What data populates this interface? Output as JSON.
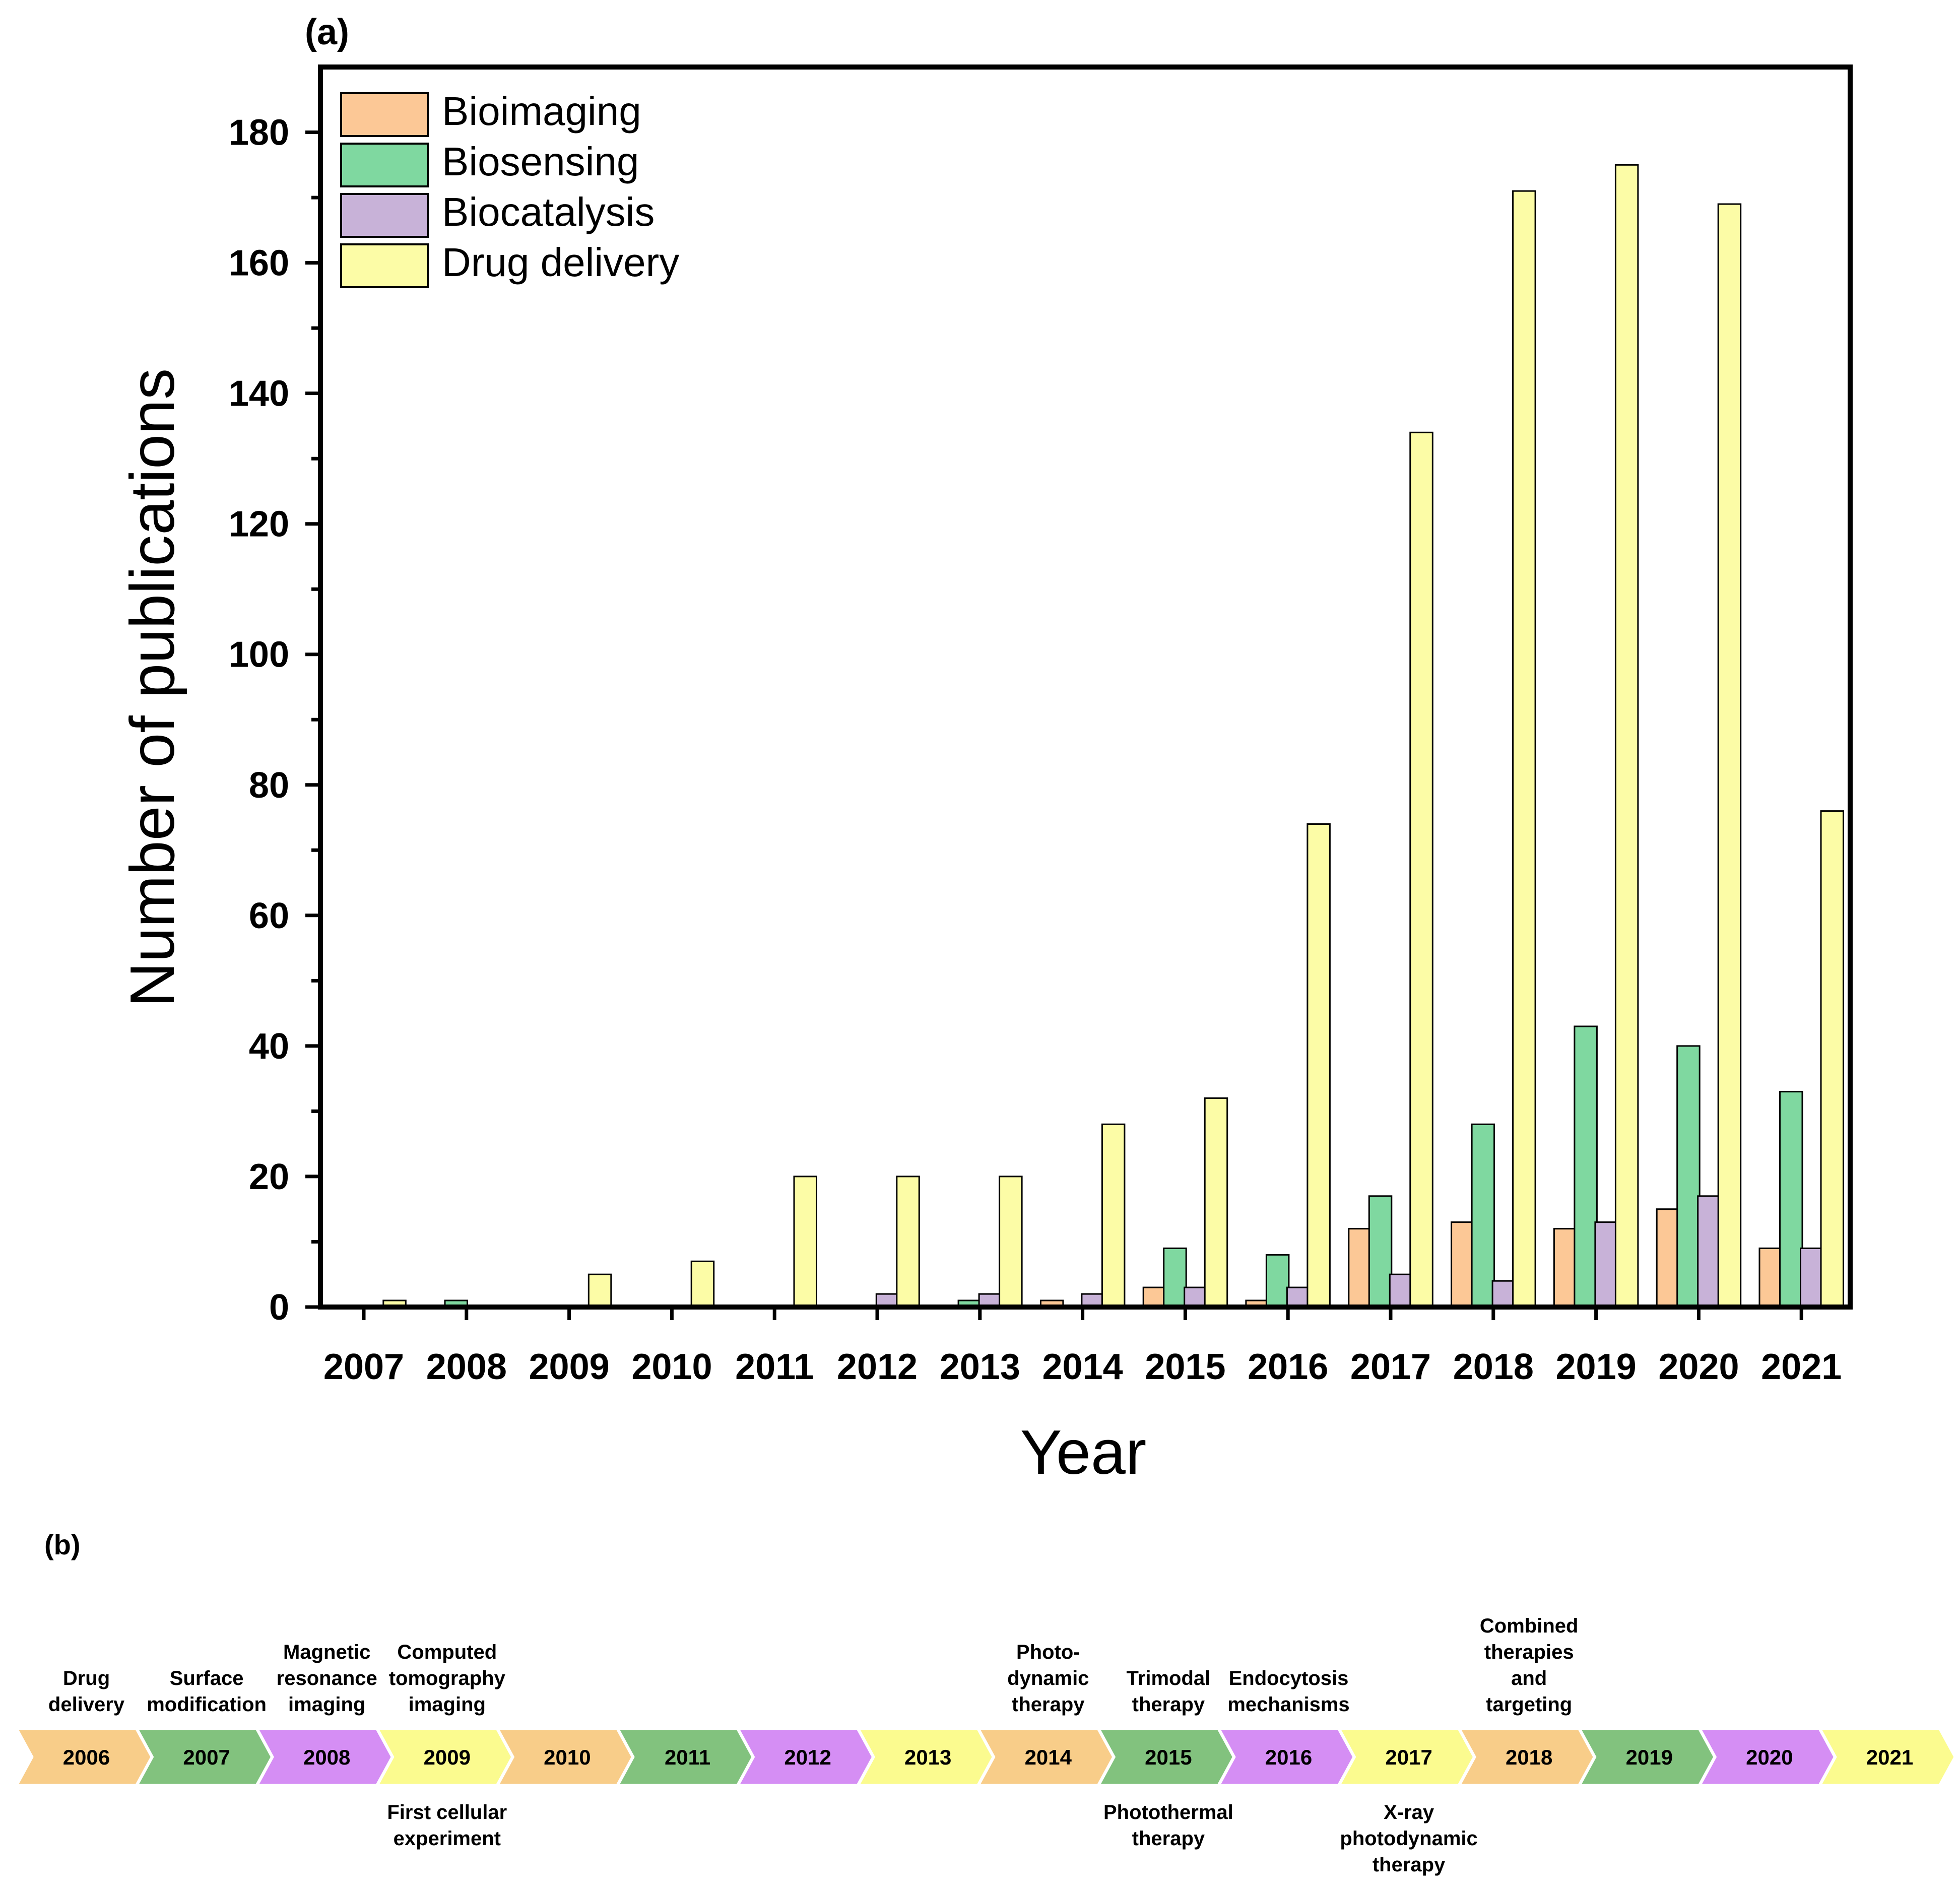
{
  "panel_a": {
    "label": "(a)"
  },
  "panel_b": {
    "label": "(b)"
  },
  "colors": {
    "Bioimaging": "#fcc896",
    "Biosensing": "#7fd8a0",
    "Biocatalysis": "#c8b2d8",
    "Drug delivery": "#fcfca6",
    "axis": "#000000"
  },
  "chart_data": {
    "type": "bar",
    "title": "",
    "xlabel": "Year",
    "ylabel": "Number of publications",
    "ylim": [
      0,
      190
    ],
    "yticks": [
      0,
      20,
      40,
      60,
      80,
      100,
      120,
      140,
      160,
      180
    ],
    "legend_position": "top-left",
    "grid": false,
    "categories": [
      "2007",
      "2008",
      "2009",
      "2010",
      "2011",
      "2012",
      "2013",
      "2014",
      "2015",
      "2016",
      "2017",
      "2018",
      "2019",
      "2020",
      "2021"
    ],
    "series": [
      {
        "name": "Bioimaging",
        "values": [
          0,
          0,
          0,
          0,
          0,
          0,
          0,
          1,
          3,
          1,
          12,
          13,
          12,
          15,
          9
        ]
      },
      {
        "name": "Biosensing",
        "values": [
          0,
          1,
          0,
          0,
          0,
          0,
          1,
          0,
          9,
          8,
          17,
          28,
          43,
          40,
          33
        ]
      },
      {
        "name": "Biocatalysis",
        "values": [
          0,
          0,
          0,
          0,
          0,
          2,
          2,
          2,
          3,
          3,
          5,
          4,
          13,
          17,
          9
        ]
      },
      {
        "name": "Drug delivery",
        "values": [
          1,
          0,
          5,
          7,
          20,
          20,
          20,
          28,
          32,
          74,
          134,
          171,
          175,
          169,
          76
        ]
      }
    ]
  },
  "timeline": {
    "milestones": [
      {
        "year": "2006",
        "color": "#f8cd89",
        "above": [
          "Drug",
          "delivery"
        ],
        "below": []
      },
      {
        "year": "2007",
        "color": "#82c27e",
        "above": [
          "Surface",
          "modification"
        ],
        "below": []
      },
      {
        "year": "2008",
        "color": "#d58ef4",
        "above": [
          "Magnetic",
          "resonance",
          "imaging"
        ],
        "below": []
      },
      {
        "year": "2009",
        "color": "#fbfb8f",
        "above": [
          "Computed",
          "tomography",
          "imaging"
        ],
        "below": [
          "First cellular",
          "experiment"
        ]
      },
      {
        "year": "2010",
        "color": "#f8cd89",
        "above": [],
        "below": []
      },
      {
        "year": "2011",
        "color": "#82c27e",
        "above": [],
        "below": []
      },
      {
        "year": "2012",
        "color": "#d58ef4",
        "above": [],
        "below": []
      },
      {
        "year": "2013",
        "color": "#fbfb8f",
        "above": [],
        "below": []
      },
      {
        "year": "2014",
        "color": "#f8cd89",
        "above": [
          "Photo-",
          "dynamic",
          "therapy"
        ],
        "below": []
      },
      {
        "year": "2015",
        "color": "#82c27e",
        "above": [
          "Trimodal",
          "therapy"
        ],
        "below": [
          "Photothermal",
          "therapy"
        ]
      },
      {
        "year": "2016",
        "color": "#d58ef4",
        "above": [
          "Endocytosis",
          "mechanisms"
        ],
        "below": []
      },
      {
        "year": "2017",
        "color": "#fbfb8f",
        "above": [],
        "below": [
          "X-ray",
          "photodynamic",
          "therapy"
        ]
      },
      {
        "year": "2018",
        "color": "#f8cd89",
        "above": [
          "Combined",
          "therapies",
          "and",
          "targeting"
        ],
        "below": []
      },
      {
        "year": "2019",
        "color": "#82c27e",
        "above": [],
        "below": []
      },
      {
        "year": "2020",
        "color": "#d58ef4",
        "above": [],
        "below": []
      },
      {
        "year": "2021",
        "color": "#fbfb8f",
        "above": [],
        "below": []
      }
    ]
  }
}
